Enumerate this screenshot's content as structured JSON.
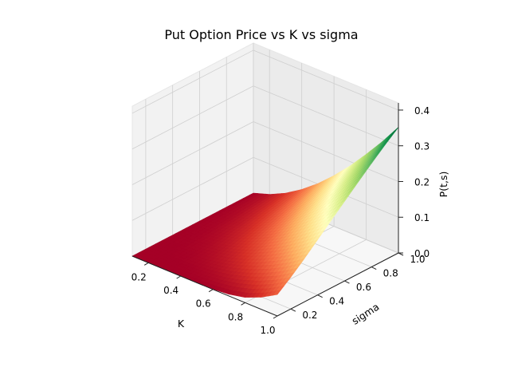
{
  "chart_data": {
    "type": "surface3d",
    "title": "Put Option Price vs K vs sigma",
    "xlabel": "K",
    "ylabel": "sigma",
    "zlabel": "P(t,s)",
    "xlim": [
      0.1,
      1.0
    ],
    "ylim": [
      0.1,
      1.0
    ],
    "zlim": [
      0.0,
      0.42
    ],
    "xticks": [
      "0.2",
      "0.4",
      "0.6",
      "0.8",
      "1.0"
    ],
    "yticks": [
      "0.2",
      "0.4",
      "0.6",
      "0.8",
      "1.0"
    ],
    "zticks": [
      "0.0",
      "0.1",
      "0.2",
      "0.3",
      "0.4"
    ],
    "colormap": "RdYlGn",
    "surface_grid": {
      "K": [
        0.1,
        0.2,
        0.3,
        0.4,
        0.5,
        0.6,
        0.7,
        0.8,
        0.9,
        1.0
      ],
      "sigma": [
        0.1,
        0.2,
        0.3,
        0.4,
        0.5,
        0.6,
        0.7,
        0.8,
        0.9,
        1.0
      ],
      "P": [
        [
          0.0,
          0.0,
          0.0,
          0.0,
          0.0,
          0.0,
          0.0,
          0.0,
          0.0,
          0.0
        ],
        [
          0.0,
          0.0,
          0.0,
          0.001,
          0.002,
          0.004,
          0.006,
          0.009,
          0.012,
          0.015
        ],
        [
          0.0,
          0.0,
          0.002,
          0.005,
          0.009,
          0.014,
          0.019,
          0.025,
          0.031,
          0.037
        ],
        [
          0.0,
          0.002,
          0.007,
          0.013,
          0.021,
          0.029,
          0.038,
          0.047,
          0.056,
          0.066
        ],
        [
          0.0,
          0.006,
          0.015,
          0.026,
          0.038,
          0.05,
          0.062,
          0.075,
          0.088,
          0.101
        ],
        [
          0.001,
          0.013,
          0.028,
          0.043,
          0.059,
          0.076,
          0.092,
          0.109,
          0.126,
          0.142
        ],
        [
          0.005,
          0.025,
          0.045,
          0.065,
          0.086,
          0.107,
          0.127,
          0.148,
          0.168,
          0.188
        ],
        [
          0.015,
          0.041,
          0.066,
          0.091,
          0.117,
          0.142,
          0.167,
          0.191,
          0.215,
          0.239
        ],
        [
          0.034,
          0.062,
          0.091,
          0.121,
          0.151,
          0.18,
          0.21,
          0.239,
          0.266,
          0.293
        ],
        [
          0.06,
          0.089,
          0.121,
          0.155,
          0.189,
          0.223,
          0.257,
          0.29,
          0.322,
          0.352
        ]
      ]
    }
  }
}
